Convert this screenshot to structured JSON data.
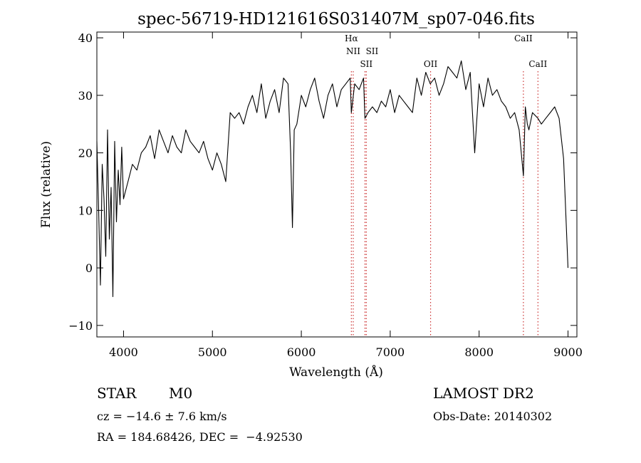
{
  "chart_data": {
    "type": "line",
    "title": "spec-56719-HD121616S031407M_sp07-046.fits",
    "xlabel": "Wavelength (Å)",
    "ylabel": "Flux (relative)",
    "xlim": [
      3700,
      9100
    ],
    "ylim": [
      -12,
      41
    ],
    "x_ticks": [
      4000,
      5000,
      6000,
      7000,
      8000,
      9000
    ],
    "y_ticks": [
      -10,
      0,
      10,
      20,
      30,
      40
    ],
    "grid": false,
    "line_color": "#000000",
    "marker_color": "#cc3333",
    "series": [
      {
        "x": [
          3700,
          3720,
          3740,
          3760,
          3780,
          3800,
          3820,
          3840,
          3860,
          3880,
          3900,
          3920,
          3940,
          3960,
          3980,
          4000,
          4050,
          4100,
          4150,
          4200,
          4250,
          4300,
          4350,
          4400,
          4450,
          4500,
          4550,
          4600,
          4650,
          4700,
          4750,
          4800,
          4850,
          4900,
          4950,
          5000,
          5050,
          5100,
          5150,
          5200,
          5250,
          5300,
          5350,
          5400,
          5450,
          5500,
          5550,
          5600,
          5650,
          5700,
          5750,
          5800,
          5850,
          5880,
          5900,
          5920,
          5950,
          6000,
          6050,
          6100,
          6150,
          6200,
          6250,
          6300,
          6350,
          6400,
          6450,
          6500,
          6550,
          6563,
          6600,
          6650,
          6700,
          6716,
          6750,
          6800,
          6850,
          6900,
          6950,
          7000,
          7050,
          7100,
          7150,
          7200,
          7250,
          7300,
          7350,
          7400,
          7450,
          7500,
          7550,
          7600,
          7650,
          7700,
          7750,
          7800,
          7850,
          7900,
          7950,
          8000,
          8050,
          8100,
          8150,
          8200,
          8250,
          8300,
          8350,
          8400,
          8450,
          8498,
          8520,
          8542,
          8560,
          8600,
          8662,
          8700,
          8750,
          8800,
          8850,
          8900,
          8950,
          9000
        ],
        "y": [
          22,
          10,
          -3,
          18,
          12,
          2,
          24,
          5,
          14,
          -5,
          22,
          8,
          17,
          11,
          21,
          12,
          15,
          18,
          17,
          20,
          21,
          23,
          19,
          24,
          22,
          20,
          23,
          21,
          20,
          24,
          22,
          21,
          20,
          22,
          19,
          17,
          20,
          18,
          15,
          27,
          26,
          27,
          25,
          28,
          30,
          27,
          32,
          26,
          29,
          31,
          27,
          33,
          32,
          20,
          7,
          24,
          25,
          30,
          28,
          31,
          33,
          29,
          26,
          30,
          32,
          28,
          31,
          32,
          33,
          27,
          32,
          31,
          33,
          26,
          27,
          28,
          27,
          29,
          28,
          31,
          27,
          30,
          29,
          28,
          27,
          33,
          30,
          34,
          32,
          33,
          30,
          32,
          35,
          34,
          33,
          36,
          31,
          34,
          20,
          32,
          28,
          33,
          30,
          31,
          29,
          28,
          26,
          27,
          24,
          16,
          28,
          25,
          24,
          27,
          26,
          25,
          26,
          27,
          28,
          26,
          19,
          0
        ]
      }
    ],
    "line_markers": [
      {
        "label": "Hα",
        "x": 6563
      },
      {
        "label": "NII",
        "x": 6584
      },
      {
        "label": "SII",
        "x": 6716
      },
      {
        "label": "SII",
        "x": 6731
      },
      {
        "label": "OII",
        "x": 7454
      },
      {
        "label": "CaII",
        "x": 8498
      },
      {
        "label": "CaII",
        "x": 8662
      }
    ],
    "annotations": {
      "class_label": "STAR",
      "subclass": "M0",
      "survey": "LAMOST DR2",
      "cz": "cz = −14.6 ± 7.6 km/s",
      "obs_date": "Obs-Date: 20140302",
      "coords": "RA = 184.68426, DEC =  −4.92530"
    }
  }
}
